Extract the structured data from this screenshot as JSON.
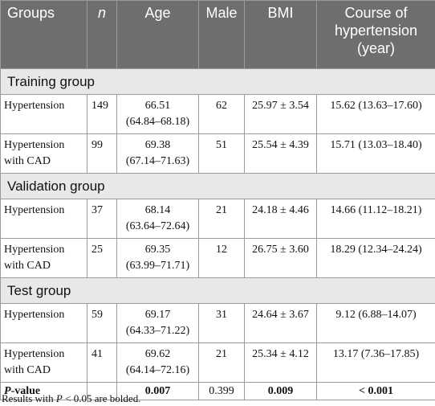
{
  "header": {
    "groups": "Groups",
    "n": "n",
    "age": "Age",
    "male": "Male",
    "bmi": "BMI",
    "course": [
      "Course of",
      "hypertension",
      "(year)"
    ]
  },
  "training": {
    "title": "Training group",
    "rows": [
      {
        "group": [
          "Hypertension"
        ],
        "n": "149",
        "age": [
          "66.51",
          "(64.84–68.18)"
        ],
        "male": "62",
        "bmi": "25.97 ± 3.54",
        "course": "15.62 (13.63–17.60)"
      },
      {
        "group": [
          "Hypertension",
          "with CAD"
        ],
        "n": "99",
        "age": [
          "69.38",
          "(67.14–71.63)"
        ],
        "male": "51",
        "bmi": "25.54 ± 4.39",
        "course": "15.71 (13.03–18.40)"
      }
    ]
  },
  "validation": {
    "title": "Validation group",
    "rows": [
      {
        "group": [
          "Hypertension"
        ],
        "n": "37",
        "age": [
          "68.14",
          "(63.64–72.64)"
        ],
        "male": "21",
        "bmi": "24.18 ± 4.46",
        "course": "14.66 (11.12–18.21)"
      },
      {
        "group": [
          "Hypertension",
          "with CAD"
        ],
        "n": "25",
        "age": [
          "69.35",
          "(63.99–71.71)"
        ],
        "male": "12",
        "bmi": "26.75 ± 3.60",
        "course": "18.29 (12.34–24.24)"
      }
    ]
  },
  "test": {
    "title": "Test group",
    "rows": [
      {
        "group": [
          "Hypertension"
        ],
        "n": "59",
        "age": [
          "69.17",
          "(64.33–71.22)"
        ],
        "male": "31",
        "bmi": "24.64 ± 3.67",
        "course": "9.12 (6.88–14.07)"
      },
      {
        "group": [
          "Hypertension",
          "with CAD"
        ],
        "n": "41",
        "age": [
          "69.62",
          "(64.14–72.16)"
        ],
        "male": "21",
        "bmi": "25.34 ± 4.12",
        "course": "13.17 (7.36–17.85)"
      }
    ]
  },
  "pvalue": {
    "label_p": "P",
    "label_rest": "-value",
    "n": "",
    "age": "0.007",
    "male": "0.399",
    "bmi": "0.009",
    "course": "< 0.001"
  },
  "footnote": {
    "pre": "Results with ",
    "p": "P",
    "post": " < 0.05 are bolded."
  }
}
